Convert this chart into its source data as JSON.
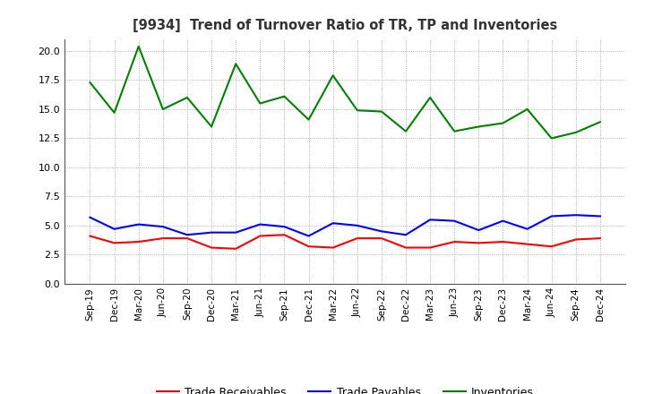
{
  "title": "[9934]  Trend of Turnover Ratio of TR, TP and Inventories",
  "x_labels": [
    "Sep-19",
    "Dec-19",
    "Mar-20",
    "Jun-20",
    "Sep-20",
    "Dec-20",
    "Mar-21",
    "Jun-21",
    "Sep-21",
    "Dec-21",
    "Mar-22",
    "Jun-22",
    "Sep-22",
    "Dec-22",
    "Mar-23",
    "Jun-23",
    "Sep-23",
    "Dec-23",
    "Mar-24",
    "Jun-24",
    "Sep-24",
    "Dec-24"
  ],
  "trade_receivables": [
    4.1,
    3.5,
    3.6,
    3.9,
    3.9,
    3.1,
    3.0,
    4.1,
    4.2,
    3.2,
    3.1,
    3.9,
    3.9,
    3.1,
    3.1,
    3.6,
    3.5,
    3.6,
    3.4,
    3.2,
    3.8,
    3.9
  ],
  "trade_payables": [
    5.7,
    4.7,
    5.1,
    4.9,
    4.2,
    4.4,
    4.4,
    5.1,
    4.9,
    4.1,
    5.2,
    5.0,
    4.5,
    4.2,
    5.5,
    5.4,
    4.6,
    5.4,
    4.7,
    5.8,
    5.9,
    5.8
  ],
  "inventories": [
    17.3,
    14.7,
    20.4,
    15.0,
    16.0,
    13.5,
    18.9,
    15.5,
    16.1,
    14.1,
    17.9,
    14.9,
    14.8,
    13.1,
    16.0,
    13.1,
    13.5,
    13.8,
    15.0,
    12.5,
    13.0,
    13.9
  ],
  "ylim": [
    0.0,
    21.0
  ],
  "yticks": [
    0.0,
    2.5,
    5.0,
    7.5,
    10.0,
    12.5,
    15.0,
    17.5,
    20.0
  ],
  "colors": {
    "trade_receivables": "#ff0000",
    "trade_payables": "#0000ff",
    "inventories": "#008000"
  },
  "legend_labels": [
    "Trade Receivables",
    "Trade Payables",
    "Inventories"
  ],
  "background_color": "#ffffff",
  "grid_color": "#999999"
}
